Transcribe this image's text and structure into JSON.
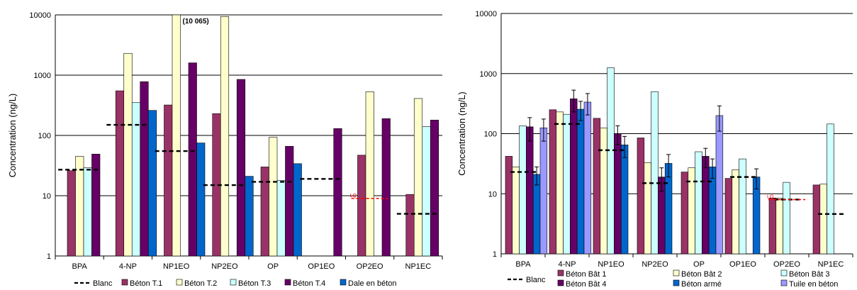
{
  "colors": {
    "blanc": "#000000",
    "lq": "#ff0000",
    "beton_t1": "#993366",
    "beton_t2": "#ffffcc",
    "beton_t3": "#ccffff",
    "beton_t4": "#660066",
    "dale": "#0066cc",
    "bat1": "#993366",
    "bat2": "#ffffcc",
    "bat3": "#ccffff",
    "bat4": "#660066",
    "arme": "#0066cc",
    "tuile": "#9999ff"
  },
  "chart_data": [
    {
      "type": "bar",
      "scale": "log",
      "ylim": [
        1,
        10000
      ],
      "yticks": [
        "1",
        "10",
        "100",
        "1000",
        "10000"
      ],
      "ylabel": "Concentration (ng/L)",
      "xlabel": "",
      "grid": true,
      "legend_position": "bottom",
      "categories": [
        "BPA",
        "4-NP",
        "NP1EO",
        "NP2EO",
        "OP",
        "OP1EO",
        "OP2EO",
        "NP1EC"
      ],
      "annotation": "(10 065)",
      "lq_label": "LQ",
      "lq": [
        null,
        null,
        null,
        null,
        null,
        null,
        9,
        null
      ],
      "blanc": {
        "name": "Blanc",
        "values": [
          27,
          150,
          55,
          15,
          17,
          19,
          null,
          5
        ]
      },
      "series": [
        {
          "name": "Béton T.1",
          "values": [
            26,
            550,
            320,
            230,
            30,
            null,
            47,
            10.5
          ]
        },
        {
          "name": "Béton T.2",
          "values": [
            45,
            2300,
            10065,
            9400,
            93,
            null,
            530,
            410
          ]
        },
        {
          "name": "Béton T.3",
          "values": [
            29,
            350,
            null,
            null,
            18,
            null,
            null,
            140
          ]
        },
        {
          "name": "Béton T.4",
          "values": [
            49,
            780,
            1600,
            850,
            66,
            130,
            190,
            180
          ]
        },
        {
          "name": "Dale en béton",
          "values": [
            null,
            260,
            75,
            21,
            34,
            null,
            null,
            null
          ]
        }
      ]
    },
    {
      "type": "bar",
      "scale": "log",
      "ylim": [
        1,
        10000
      ],
      "yticks": [
        "1",
        "10",
        "100",
        "1000",
        "10000"
      ],
      "ylabel": "Concentration (ng/L)",
      "xlabel": "",
      "grid": true,
      "legend_position": "bottom",
      "categories": [
        "BPA",
        "4-NP",
        "NP1EO",
        "NP2EO",
        "OP",
        "OP1EO",
        "OP2EO",
        "NP1EC"
      ],
      "lq_label": "LQ",
      "lq": [
        null,
        null,
        null,
        null,
        null,
        null,
        8,
        null
      ],
      "blanc": {
        "name": "Blanc",
        "values": [
          23,
          145,
          53,
          15,
          16,
          19,
          8,
          4.6
        ]
      },
      "series": [
        {
          "name": "Béton Bât 1",
          "values": [
            42,
            250,
            180,
            85,
            23,
            18,
            8.5,
            14
          ]
        },
        {
          "name": "Béton Bât 2",
          "values": [
            28,
            230,
            125,
            33,
            27,
            25,
            8.5,
            14.5
          ]
        },
        {
          "name": "Béton Bât 3",
          "values": [
            135,
            210,
            1250,
            500,
            50,
            38,
            15.5,
            145
          ]
        },
        {
          "name": "Béton Bât 4",
          "values": [
            130,
            380,
            100,
            19,
            42,
            null,
            null,
            null
          ],
          "err": [
            55,
            150,
            35,
            8,
            15,
            null,
            null,
            null
          ]
        },
        {
          "name": "Béton armé",
          "values": [
            21,
            255,
            65,
            32,
            28,
            19,
            null,
            null
          ],
          "err": [
            7,
            90,
            25,
            13,
            10,
            7,
            null,
            null
          ]
        },
        {
          "name": "Tuile en béton",
          "values": [
            125,
            335,
            null,
            null,
            200,
            null,
            null,
            null
          ],
          "err": [
            50,
            130,
            null,
            null,
            90,
            null,
            null,
            null
          ]
        }
      ]
    }
  ]
}
